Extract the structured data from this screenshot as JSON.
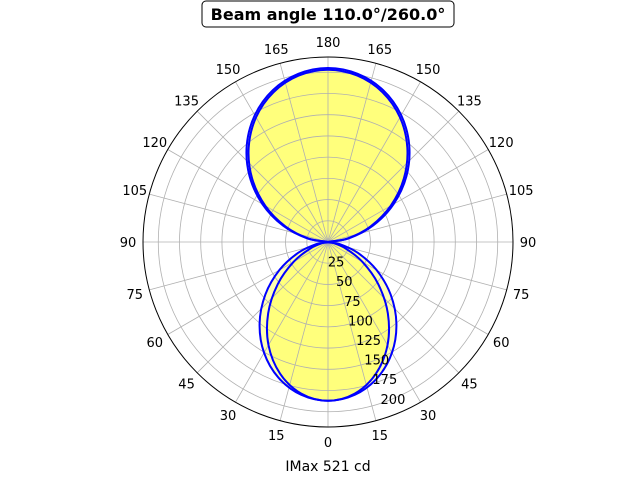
{
  "chart_data": {
    "type": "polar-line",
    "title": "Beam angle 110.0°/260.0°",
    "xlabel": "IMax 521 cd",
    "theta_zero": "bottom",
    "theta_ticks": [
      0,
      15,
      30,
      45,
      60,
      75,
      90,
      105,
      120,
      135,
      150,
      165,
      180
    ],
    "r_ticks": [
      25,
      50,
      75,
      100,
      125,
      150,
      175,
      200
    ],
    "rlim": [
      0,
      218
    ],
    "grid": true,
    "symmetric": true,
    "angles": [
      0,
      10,
      20,
      30,
      40,
      50,
      60,
      70,
      80,
      90,
      100,
      110,
      120,
      130,
      140,
      150,
      160,
      170,
      180
    ],
    "series": [
      {
        "values": [
          187,
          182.8,
          170.3,
          150.7,
          125.4,
          96.4,
          66.1,
          37.4,
          13.5,
          0,
          25.1,
          56.4,
          89.2,
          120.7,
          148.9,
          172.5,
          190.3,
          201.2,
          205
        ]
      },
      {
        "values": [
          187,
          181.4,
          165.1,
          140.3,
          109.7,
          77.3,
          46.8,
          21.9,
          5.6,
          0,
          22.8,
          53.0,
          85.3,
          116.8,
          145.4,
          169.6,
          187.8,
          199.1,
          203
        ]
      }
    ],
    "colors": {
      "line": "#0000ff",
      "fill": "#ffff00",
      "grid": "#b0b0b0",
      "spine": "#000000"
    }
  }
}
